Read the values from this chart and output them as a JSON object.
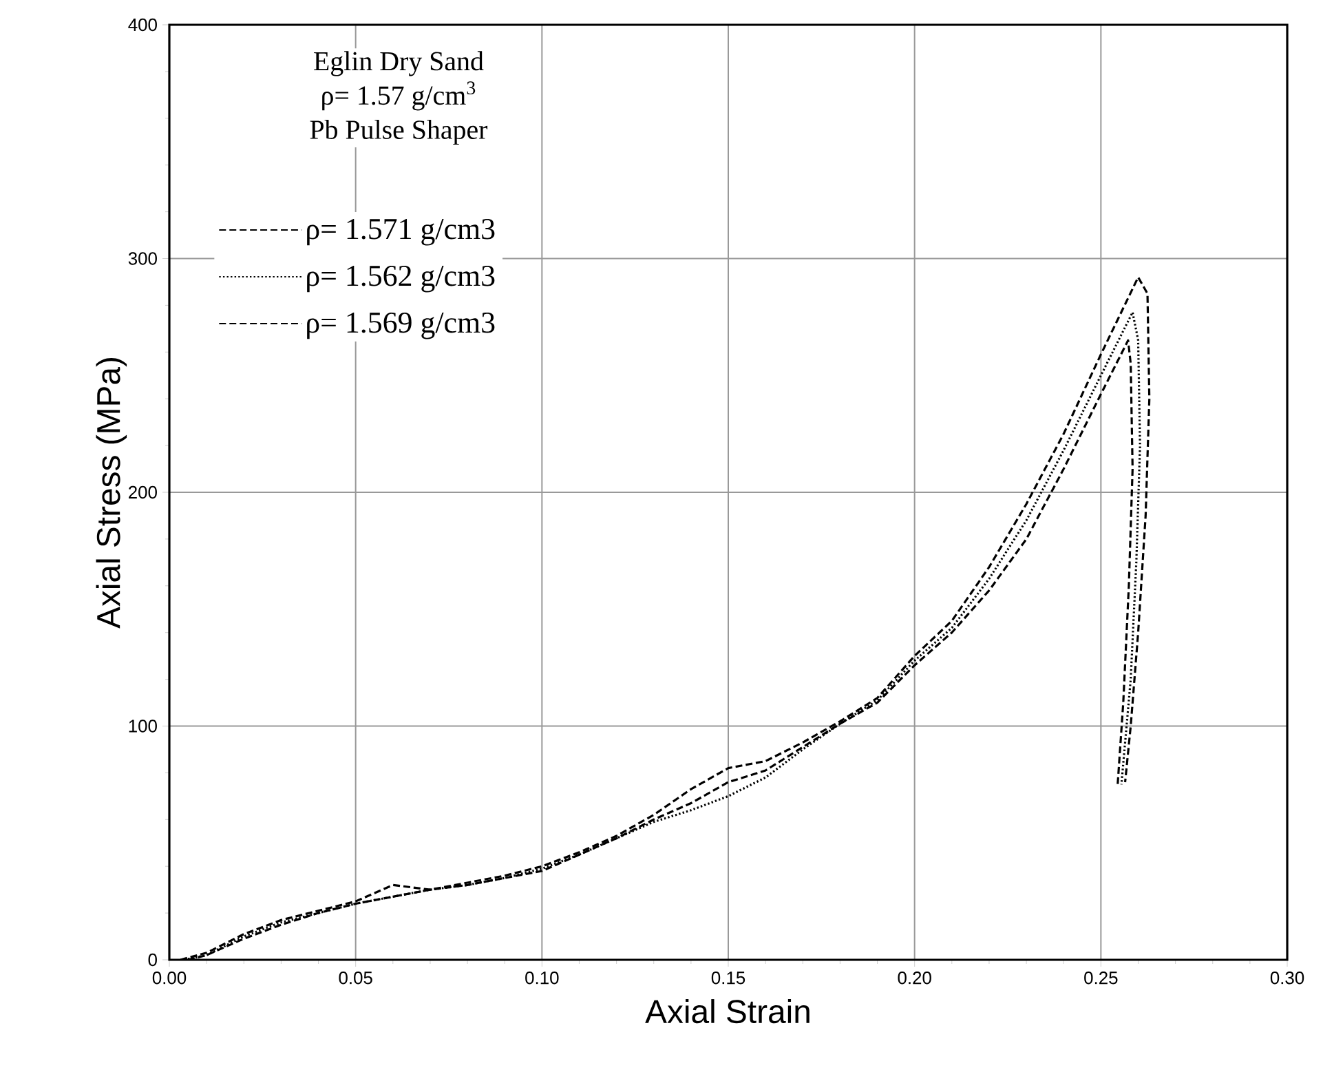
{
  "chart_data": {
    "type": "line",
    "title": "Eglin Dry Sand",
    "subtitle": "ρ= 1.57 g/cm$^{3}$",
    "annotations": [
      "Pb Pulse Shaper"
    ],
    "xlabel": "Axial Strain",
    "ylabel": "Axial Stress (MPa)",
    "xlim": [
      0,
      0.3
    ],
    "ylim": [
      0,
      400
    ],
    "xticks": [
      {
        "value": 0,
        "label": "0.00"
      },
      {
        "value": 0.05,
        "label": "0.05"
      },
      {
        "value": 0.1,
        "label": "0.10"
      },
      {
        "value": 0.15,
        "label": "0.15"
      },
      {
        "value": 0.2,
        "label": "0.20"
      },
      {
        "value": 0.25,
        "label": "0.25"
      },
      {
        "value": 0.3,
        "label": "0.30"
      }
    ],
    "yticks": [
      0,
      100,
      200,
      300,
      400
    ],
    "grid": true,
    "legend": "top left",
    "series": [
      {
        "name": "ρ= 1.571 g/cm3",
        "color": "#000000",
        "line_style": "dashed",
        "x": [
          0.003,
          0.01,
          0.02,
          0.03,
          0.04,
          0.05,
          0.06,
          0.065,
          0.07,
          0.08,
          0.09,
          0.1,
          0.11,
          0.12,
          0.13,
          0.14,
          0.15,
          0.16,
          0.17,
          0.18,
          0.19,
          0.2,
          0.21,
          0.22,
          0.23,
          0.24,
          0.25,
          0.26,
          0.2625,
          0.263,
          0.262,
          0.26,
          0.258,
          0.2565
        ],
        "values": [
          0,
          3,
          11,
          17,
          21,
          25,
          32,
          31,
          30,
          33,
          36,
          40,
          46,
          53,
          62,
          73,
          82,
          85,
          93,
          102,
          112,
          130,
          145,
          168,
          195,
          225,
          259,
          292,
          285,
          240,
          190,
          140,
          100,
          76
        ]
      },
      {
        "name": "ρ= 1.562 g/cm3",
        "color": "#000000",
        "line_style": "dotted",
        "x": [
          0.004,
          0.01,
          0.02,
          0.03,
          0.04,
          0.05,
          0.06,
          0.07,
          0.08,
          0.09,
          0.1,
          0.11,
          0.12,
          0.13,
          0.14,
          0.15,
          0.16,
          0.17,
          0.18,
          0.19,
          0.2,
          0.21,
          0.22,
          0.23,
          0.24,
          0.25,
          0.2585,
          0.26,
          0.2605,
          0.2595,
          0.258,
          0.2555
        ],
        "values": [
          0,
          2,
          10,
          16,
          20,
          24,
          27,
          30,
          32,
          35,
          39,
          45,
          52,
          59,
          64,
          70,
          78,
          90,
          101,
          111,
          128,
          142,
          163,
          188,
          218,
          250,
          277,
          265,
          220,
          170,
          120,
          75
        ]
      },
      {
        "name": "ρ= 1.569 g/cm3",
        "color": "#000000",
        "line_style": "dashed",
        "x": [
          0.005,
          0.01,
          0.02,
          0.03,
          0.04,
          0.05,
          0.06,
          0.07,
          0.08,
          0.09,
          0.1,
          0.11,
          0.12,
          0.13,
          0.14,
          0.15,
          0.16,
          0.17,
          0.18,
          0.19,
          0.2,
          0.21,
          0.22,
          0.23,
          0.24,
          0.25,
          0.2573,
          0.258,
          0.2585,
          0.2575,
          0.256,
          0.2545
        ],
        "values": [
          0,
          2,
          9,
          15,
          20,
          24,
          27,
          30,
          32,
          35,
          38,
          45,
          52,
          60,
          67,
          76,
          81,
          91,
          101,
          110,
          126,
          140,
          158,
          180,
          210,
          242,
          265,
          255,
          210,
          160,
          110,
          75
        ]
      }
    ]
  }
}
